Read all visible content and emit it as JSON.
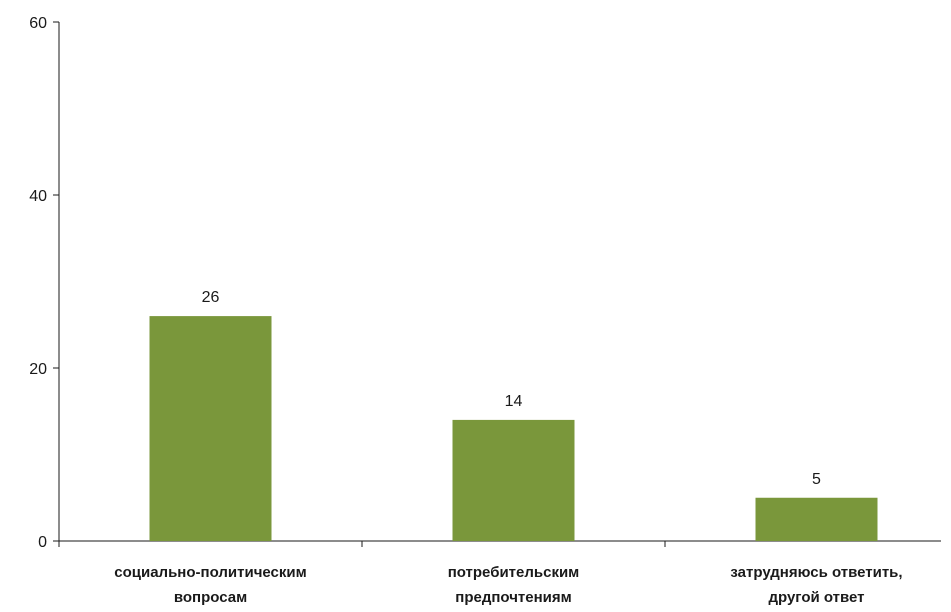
{
  "chart_data": {
    "type": "bar",
    "categories": [
      [
        "социально-политическим",
        "вопросам"
      ],
      [
        "потребительским",
        "предпочтениям"
      ],
      [
        "затрудняюсь ответить,",
        "другой ответ"
      ]
    ],
    "values": [
      26,
      14,
      5
    ],
    "data_labels": [
      "26",
      "14",
      "5"
    ],
    "title": "",
    "xlabel": "",
    "ylabel": "",
    "ylim": [
      0,
      60
    ],
    "yticks": [
      0,
      20,
      40,
      60
    ],
    "grid": false,
    "legend": "none",
    "bar_color": "#7a973b",
    "axis_color": "#1a1a1a"
  }
}
